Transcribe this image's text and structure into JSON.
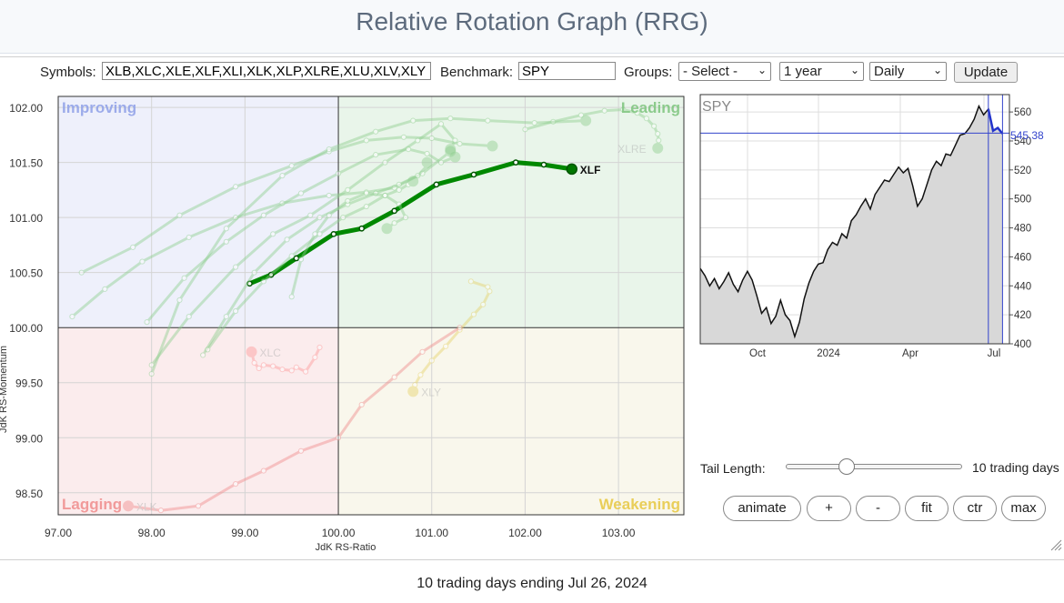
{
  "header": {
    "title": "Relative Rotation Graph (RRG)"
  },
  "controls": {
    "symbols_label": "Symbols:",
    "symbols_value": "XLB,XLC,XLE,XLF,XLI,XLK,XLP,XLRE,XLU,XLV,XLY",
    "benchmark_label": "Benchmark:",
    "benchmark_value": "SPY",
    "groups_label": "Groups:",
    "groups_selected": "- Select -",
    "period_selected": "1 year",
    "interval_selected": "Daily",
    "update_label": "Update"
  },
  "rrg": {
    "quadrants": {
      "improving": "Improving",
      "leading": "Leading",
      "lagging": "Lagging",
      "weakening": "Weakening"
    },
    "xlabel": "JdK RS-Ratio",
    "ylabel": "JdK RS-Momentum",
    "colors": {
      "improving": "#eef0fb",
      "leading": "#e9f5ea",
      "lagging": "#fbeced",
      "weakening": "#f9f7ec",
      "highlight": "#008800"
    }
  },
  "side_chart": {
    "symbol": "SPY",
    "last_value": "545.38",
    "x_ticks": [
      "Oct",
      "2024",
      "Apr",
      "Jul"
    ]
  },
  "tail": {
    "label": "Tail Length:",
    "value_text": "10 trading days",
    "slider_fraction": 0.33
  },
  "buttons": {
    "animate": "animate",
    "plus": "+",
    "minus": "-",
    "fit": "fit",
    "ctr": "ctr",
    "max": "max"
  },
  "footer": {
    "text": "10 trading days ending Jul 26, 2024"
  },
  "chart_data": [
    {
      "type": "scatter",
      "title": "",
      "xlabel": "JdK RS-Ratio",
      "ylabel": "JdK RS-Momentum",
      "xlim": [
        97,
        103.7
      ],
      "ylim": [
        98.3,
        102.1
      ],
      "x_ticks": [
        97,
        98,
        99,
        100,
        101,
        102,
        103
      ],
      "x_tick_labels": [
        "97.00",
        "98.00",
        "99.00",
        "100.00",
        "101.00",
        "102.00",
        "103.00"
      ],
      "y_ticks": [
        98.5,
        99,
        99.5,
        100,
        100.5,
        101,
        101.5,
        102
      ],
      "y_tick_labels": [
        "98.50",
        "99.00",
        "99.50",
        "100.00",
        "100.50",
        "101.00",
        "101.50",
        "102.00"
      ],
      "series": [
        {
          "name": "XLF",
          "highlight": true,
          "color": "#008800",
          "x": [
            99.05,
            99.28,
            99.55,
            99.95,
            100.25,
            100.6,
            101.05,
            101.45,
            101.9,
            102.2,
            102.5
          ],
          "y": [
            100.4,
            100.48,
            100.63,
            100.85,
            100.9,
            101.06,
            101.3,
            101.39,
            101.5,
            101.48,
            101.44
          ]
        },
        {
          "name": "XLC",
          "color": "#ff9a9a",
          "x": [
            99.8,
            99.75,
            99.65,
            99.55,
            99.5,
            99.4,
            99.3,
            99.2,
            99.15,
            99.1,
            99.07
          ],
          "y": [
            99.82,
            99.73,
            99.6,
            99.64,
            99.61,
            99.62,
            99.65,
            99.66,
            99.63,
            99.68,
            99.78
          ]
        },
        {
          "name": "XLY",
          "color": "#e6d26a",
          "x": [
            101.42,
            101.6,
            101.62,
            101.55,
            101.45,
            101.3,
            101.15,
            101.0,
            100.88,
            100.82,
            100.8
          ],
          "y": [
            100.42,
            100.37,
            100.33,
            100.21,
            100.12,
            99.98,
            99.83,
            99.7,
            99.57,
            99.48,
            99.42
          ]
        },
        {
          "name": "XLRE",
          "color": "#8fcf8f",
          "x": [
            102.0,
            102.3,
            102.6,
            102.85,
            103.05,
            103.2,
            103.3,
            103.38,
            103.42,
            103.43,
            103.42
          ],
          "y": [
            101.8,
            101.87,
            101.93,
            101.97,
            101.98,
            101.95,
            101.9,
            101.83,
            101.76,
            101.7,
            101.63
          ]
        },
        {
          "name": "XLK",
          "color": "#f08c8c",
          "x": [
            101.3,
            100.9,
            100.6,
            100.25,
            100.0,
            99.6,
            99.2,
            98.9,
            98.5,
            98.1,
            97.75
          ],
          "y": [
            100.0,
            99.78,
            99.55,
            99.3,
            99.0,
            98.88,
            98.7,
            98.58,
            98.38,
            98.34,
            98.38
          ]
        },
        {
          "name": "",
          "color": "#8fcf8f",
          "x": [
            97.15,
            97.5,
            97.9,
            98.4,
            98.9,
            99.4,
            99.9,
            100.3,
            100.6,
            100.9,
            101.2
          ],
          "y": [
            100.1,
            100.35,
            100.6,
            100.82,
            101.0,
            101.13,
            101.2,
            101.23,
            101.27,
            101.4,
            101.6
          ]
        },
        {
          "name": "",
          "color": "#8fcf8f",
          "x": [
            97.25,
            97.8,
            98.3,
            98.9,
            99.5,
            99.9,
            100.3,
            100.7,
            101.0,
            101.3,
            101.65
          ],
          "y": [
            100.5,
            100.73,
            101.02,
            101.28,
            101.47,
            101.6,
            101.7,
            101.73,
            101.72,
            101.67,
            101.65
          ]
        },
        {
          "name": "",
          "color": "#8fcf8f",
          "x": [
            98.0,
            98.4,
            98.9,
            99.3,
            99.7,
            100.1,
            100.5,
            100.85,
            101.1,
            101.25,
            101.2
          ],
          "y": [
            99.66,
            100.1,
            100.55,
            100.85,
            101.02,
            101.25,
            101.5,
            101.7,
            101.85,
            101.7,
            101.62
          ]
        },
        {
          "name": "",
          "color": "#8fcf8f",
          "x": [
            97.95,
            98.35,
            98.8,
            99.2,
            99.6,
            100.0,
            100.4,
            100.75,
            100.95,
            101.1,
            101.25
          ],
          "y": [
            100.05,
            100.45,
            100.78,
            101.02,
            101.22,
            101.4,
            101.57,
            101.62,
            101.58,
            101.5,
            101.55
          ]
        },
        {
          "name": "",
          "color": "#8fcf8f",
          "x": [
            98.55,
            98.8,
            99.1,
            99.45,
            99.8,
            100.1,
            100.4,
            100.65,
            100.85,
            100.95,
            100.95
          ],
          "y": [
            99.75,
            100.1,
            100.5,
            100.8,
            101.0,
            101.12,
            101.22,
            101.3,
            101.38,
            101.47,
            101.5
          ]
        },
        {
          "name": "",
          "color": "#8fcf8f",
          "x": [
            98.6,
            98.9,
            99.2,
            99.5,
            99.8,
            100.05,
            100.3,
            100.5,
            100.65,
            100.75,
            100.8
          ],
          "y": [
            99.8,
            100.15,
            100.42,
            100.65,
            100.85,
            101.0,
            101.1,
            101.2,
            101.25,
            101.3,
            101.33
          ]
        },
        {
          "name": "",
          "color": "#8fcf8f",
          "x": [
            98.0,
            98.3,
            98.8,
            99.4,
            99.9,
            100.4,
            100.8,
            101.2,
            101.6,
            102.1,
            102.65
          ],
          "y": [
            99.58,
            100.25,
            100.9,
            101.38,
            101.62,
            101.78,
            101.88,
            101.9,
            101.88,
            101.86,
            101.88
          ]
        },
        {
          "name": "",
          "color": "#8fcf8f",
          "x": [
            99.5,
            99.6,
            99.75,
            99.9,
            100.1,
            100.3,
            100.5,
            100.65,
            100.72,
            100.6,
            100.52
          ],
          "y": [
            100.28,
            100.62,
            100.85,
            101.02,
            101.15,
            101.22,
            101.2,
            101.12,
            101.0,
            100.95,
            100.9
          ]
        }
      ]
    },
    {
      "type": "area",
      "title": "SPY",
      "x_ticks": [
        "Oct",
        "2024",
        "Apr",
        "Jul"
      ],
      "ylim": [
        400,
        572
      ],
      "y_ticks": [
        400,
        420,
        440,
        460,
        480,
        500,
        520,
        540,
        560
      ],
      "y_tick_labels": [
        "400",
        "420",
        "440",
        "460",
        "480",
        "500",
        "520",
        "540",
        "560"
      ],
      "last_value": 545.38,
      "series": [
        {
          "name": "SPY",
          "x": [
            0,
            4,
            8,
            12,
            16,
            20,
            24,
            28,
            32,
            36,
            40,
            44,
            48,
            52,
            56,
            60,
            64,
            68,
            72,
            76,
            80,
            84,
            88,
            92,
            96,
            100,
            104,
            108,
            112,
            116,
            120,
            124,
            128,
            132,
            136,
            140,
            144,
            148,
            152,
            156,
            160,
            164,
            168,
            172,
            176,
            180,
            184,
            188,
            192,
            196,
            200,
            204,
            208,
            212,
            216,
            220,
            224,
            228,
            232,
            236,
            240,
            244,
            248,
            252,
            256
          ],
          "values": [
            452,
            447,
            440,
            445,
            438,
            443,
            449,
            441,
            436,
            444,
            450,
            444,
            433,
            421,
            425,
            414,
            419,
            430,
            420,
            416,
            405,
            415,
            431,
            442,
            450,
            455,
            456,
            465,
            470,
            468,
            476,
            473,
            485,
            489,
            495,
            500,
            493,
            503,
            508,
            513,
            512,
            517,
            522,
            518,
            521,
            509,
            495,
            500,
            510,
            520,
            526,
            523,
            531,
            530,
            537,
            544,
            545,
            549,
            555,
            564,
            558,
            562,
            547,
            549,
            545
          ]
        }
      ]
    }
  ]
}
